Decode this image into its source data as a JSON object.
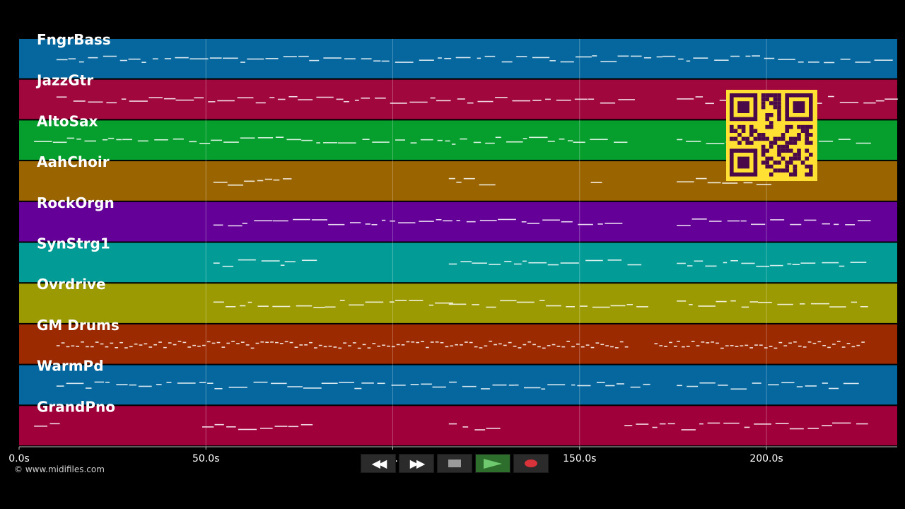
{
  "timeline": {
    "unit": "s",
    "max_seconds": 235,
    "ticks": [
      {
        "value": 0,
        "label": "0.0s"
      },
      {
        "value": 50,
        "label": "50.0s"
      },
      {
        "value": 100,
        "label": "100.0s"
      },
      {
        "value": 150,
        "label": "150.0s"
      },
      {
        "value": 200,
        "label": "200.0s"
      }
    ]
  },
  "tracks": [
    {
      "name": "FngrBass",
      "color": "#05679d"
    },
    {
      "name": "JazzGtr",
      "color": "#a0073d"
    },
    {
      "name": "AltoSax",
      "color": "#069e2d"
    },
    {
      "name": "AahChoir",
      "color": "#9a6500"
    },
    {
      "name": "RockOrgn",
      "color": "#640098"
    },
    {
      "name": "SynStrg1",
      "color": "#039b96"
    },
    {
      "name": "Ovrdrive",
      "color": "#9b9a02"
    },
    {
      "name": "GM Drums",
      "color": "#9c2a01"
    },
    {
      "name": "WarmPd",
      "color": "#05679d"
    },
    {
      "name": "GrandPno",
      "color": "#a0003a"
    }
  ],
  "credit": "© www.midifiles.com",
  "transport": {
    "rewind_icon": "rewind-icon",
    "fast_forward_icon": "fast-forward-icon",
    "stop_icon": "stop-icon",
    "play_icon": "play-icon",
    "record_icon": "record-icon"
  },
  "qr_code": {
    "color": "#ffe033",
    "dark": "#4a0a4a"
  }
}
